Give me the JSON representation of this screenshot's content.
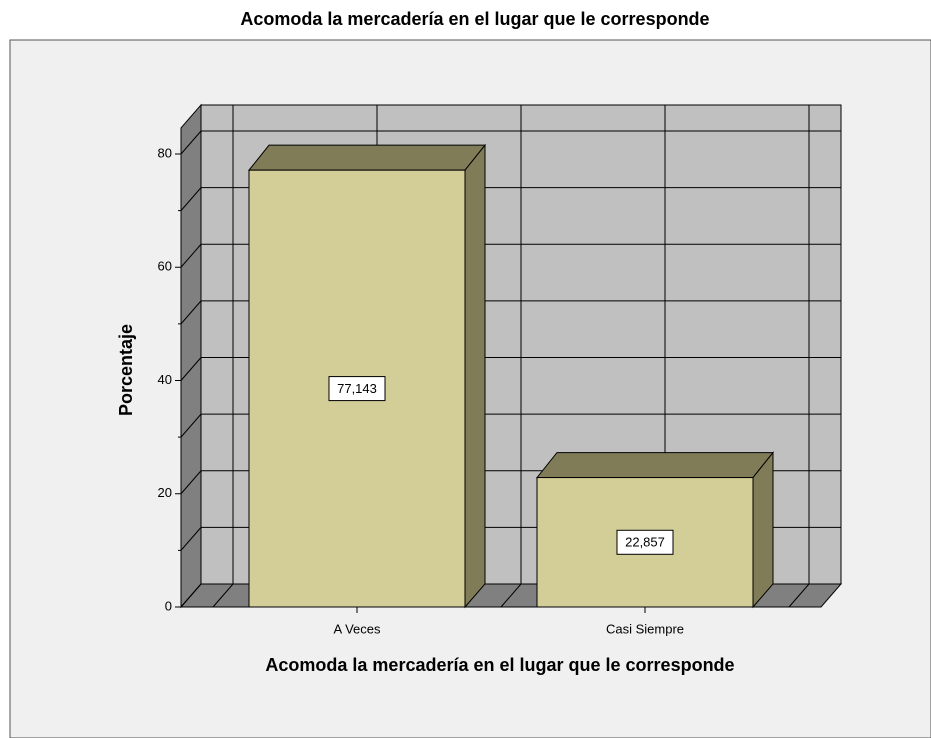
{
  "chart_data": {
    "type": "bar3d",
    "title": "Acomoda la mercadería en el lugar que le corresponde",
    "xlabel": "Acomoda la mercadería en el lugar que le corresponde",
    "ylabel": "Porcentaje",
    "categories": [
      "A Veces",
      "Casi Siempre"
    ],
    "values": [
      77.143,
      22.857
    ],
    "value_labels": [
      "77,143",
      "22,857"
    ],
    "color": "#d3cd98",
    "ylim": [
      0,
      84.6
    ],
    "yticks": [
      0,
      20,
      40,
      60,
      80
    ],
    "yminorticks": [
      10,
      30,
      50,
      70
    ],
    "grid": true
  }
}
